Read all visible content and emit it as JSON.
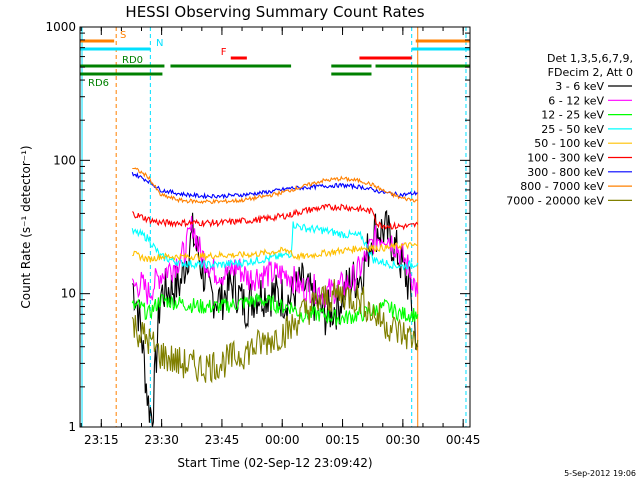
{
  "chart_data": {
    "type": "line",
    "title": "HESSI Observing Summary Count Rates",
    "xlabel": "Start Time (02-Sep-12 23:09:42)",
    "ylabel": "Count Rate (s⁻¹ detector⁻¹)",
    "x_unit": "minutes after 23:09:42",
    "xlim": [
      0,
      97
    ],
    "ylim": [
      1,
      1000
    ],
    "yscale": "log",
    "x_ticks": [
      "23:15",
      "23:30",
      "23:45",
      "00:00",
      "00:15",
      "00:30",
      "00:45"
    ],
    "y_ticks": [
      "1",
      "10",
      "100",
      "1000"
    ],
    "legend_header": [
      "Det 1,3,5,6,7,9,",
      "FDecim 2, Att 0"
    ],
    "legend_position": "right",
    "date_stamp": "5-Sep-2012 19:06",
    "flags": [
      {
        "label": "S",
        "color": "#ff8000",
        "segments": [
          [
            0,
            8.5
          ],
          [
            83.5,
            97
          ]
        ],
        "level": 0.14
      },
      {
        "label": "N",
        "color": "#00e0ff",
        "segments": [
          [
            0,
            17.5
          ],
          [
            82.5,
            97
          ]
        ],
        "level": 0.18
      },
      {
        "label": "F",
        "color": "#ff0000",
        "segments": [
          [
            37.5,
            41.5
          ],
          [
            69.5,
            82.5
          ]
        ],
        "level": 0.26
      },
      {
        "label": "RD0",
        "color": "#008000",
        "segments": [
          [
            0,
            21
          ],
          [
            22.5,
            52.5
          ],
          [
            62.5,
            72.5
          ],
          [
            73.5,
            97
          ]
        ],
        "level": 0.3
      },
      {
        "label": "RD6",
        "color": "#008000",
        "segments": [
          [
            0,
            20.5
          ],
          [
            62.5,
            72.5
          ]
        ],
        "level": 0.34
      }
    ],
    "vlines": [
      {
        "x": 9,
        "color": "#ff8000"
      },
      {
        "x": 17.5,
        "color": "#00e0ff"
      },
      {
        "x": 82.5,
        "color": "#00e0ff"
      },
      {
        "x": 96,
        "color": "#00e0ff"
      }
    ],
    "saa_edges": [
      {
        "x": 0.5,
        "color": "#00e0ff"
      },
      {
        "x": 84,
        "color": "#ff8000"
      }
    ],
    "series": [
      {
        "name": "3 - 6 keV",
        "color": "#000000",
        "x": [
          13,
          14,
          15,
          16,
          17,
          18,
          20,
          25,
          28,
          30,
          32,
          35,
          38,
          41,
          44,
          48,
          52,
          55,
          58,
          61,
          64,
          67,
          70,
          73,
          76,
          79,
          82,
          84
        ],
        "y": [
          12,
          9,
          6,
          3,
          1.5,
          1.2,
          10,
          12,
          28,
          17,
          10,
          9,
          12,
          8,
          10,
          10,
          9,
          12,
          9,
          7,
          8,
          12,
          14,
          30,
          30,
          20,
          11,
          4
        ]
      },
      {
        "name": "6 - 12 keV",
        "color": "#ff00ff",
        "x": [
          13,
          15,
          17,
          20,
          23,
          26,
          28,
          30,
          33,
          36,
          39,
          42,
          45,
          48,
          52,
          55,
          58,
          61,
          64,
          67,
          70,
          73,
          76,
          79,
          82,
          84
        ],
        "y": [
          11,
          12,
          10,
          14,
          16,
          20,
          33,
          20,
          15,
          14,
          16,
          13,
          14,
          14,
          14,
          11,
          11,
          10,
          11,
          12,
          16,
          25,
          28,
          22,
          15,
          10
        ]
      },
      {
        "name": "12 - 25 keV",
        "color": "#00ff00",
        "x": [
          13,
          15,
          17,
          20,
          25,
          30,
          35,
          40,
          45,
          50,
          52.5,
          55,
          60,
          65,
          70,
          73,
          76,
          80,
          84
        ],
        "y": [
          8,
          8,
          7,
          9,
          8.5,
          8,
          8,
          8.5,
          9,
          8,
          8,
          7,
          7,
          6.5,
          7,
          7.5,
          8,
          7,
          7
        ]
      },
      {
        "name": "25 - 50 keV",
        "color": "#00ffff",
        "x": [
          13,
          15,
          17,
          20,
          25,
          30,
          35,
          40,
          45,
          50,
          52.5,
          53,
          56,
          60,
          65,
          70,
          73,
          76,
          80,
          84
        ],
        "y": [
          29,
          28,
          26,
          19,
          17,
          16.5,
          16.5,
          17,
          18,
          19,
          20,
          33,
          31,
          30,
          28,
          27,
          18,
          17,
          16,
          17
        ]
      },
      {
        "name": "50 - 100 keV",
        "color": "#ffc000",
        "x": [
          13,
          15,
          17,
          20,
          25,
          30,
          35,
          40,
          45,
          50,
          52.5,
          53,
          56,
          60,
          65,
          70,
          73,
          76,
          80,
          84
        ],
        "y": [
          20,
          19,
          18,
          19,
          19,
          19,
          19.5,
          19.5,
          20,
          21,
          21,
          19,
          19,
          20,
          21,
          22,
          22,
          22,
          23,
          23
        ]
      },
      {
        "name": "100 - 300 keV",
        "color": "#ff0000",
        "x": [
          13,
          15,
          17,
          20,
          25,
          30,
          35,
          40,
          45,
          50,
          52.5,
          53,
          56,
          60,
          65,
          70,
          73,
          74,
          78,
          82,
          84
        ],
        "y": [
          40,
          38,
          36,
          34,
          34,
          34,
          34,
          35,
          36,
          38,
          39,
          40,
          42,
          44,
          45,
          43,
          41,
          33,
          32,
          32,
          33
        ]
      },
      {
        "name": "300 - 800 keV",
        "color": "#0000ff",
        "x": [
          13,
          15,
          17,
          20,
          25,
          30,
          35,
          40,
          45,
          50,
          52.5,
          55,
          60,
          65,
          70,
          73,
          76,
          80,
          84
        ],
        "y": [
          80,
          75,
          70,
          60,
          56,
          54,
          54,
          55,
          57,
          60,
          62,
          62,
          64,
          65,
          63,
          60,
          57,
          55,
          57
        ]
      },
      {
        "name": "800 - 7000 keV",
        "color": "#ff8000",
        "x": [
          13,
          15,
          17,
          20,
          25,
          30,
          35,
          40,
          45,
          50,
          52.5,
          55,
          60,
          65,
          70,
          73,
          76,
          80,
          84
        ],
        "y": [
          88,
          82,
          75,
          55,
          50,
          49,
          49,
          50,
          53,
          57,
          60,
          63,
          70,
          73,
          70,
          65,
          58,
          52,
          50
        ]
      },
      {
        "name": "7000 - 20000 keV",
        "color": "#808000",
        "x": [
          13,
          15,
          17,
          20,
          25,
          30,
          35,
          40,
          45,
          50,
          52.5,
          55,
          60,
          65,
          70,
          73,
          76,
          80,
          84
        ],
        "y": [
          6,
          5,
          4.5,
          3.5,
          3,
          2.8,
          3,
          3.5,
          4.2,
          5,
          5.5,
          7,
          9,
          10,
          9,
          7,
          6,
          5,
          4.5
        ]
      }
    ]
  }
}
